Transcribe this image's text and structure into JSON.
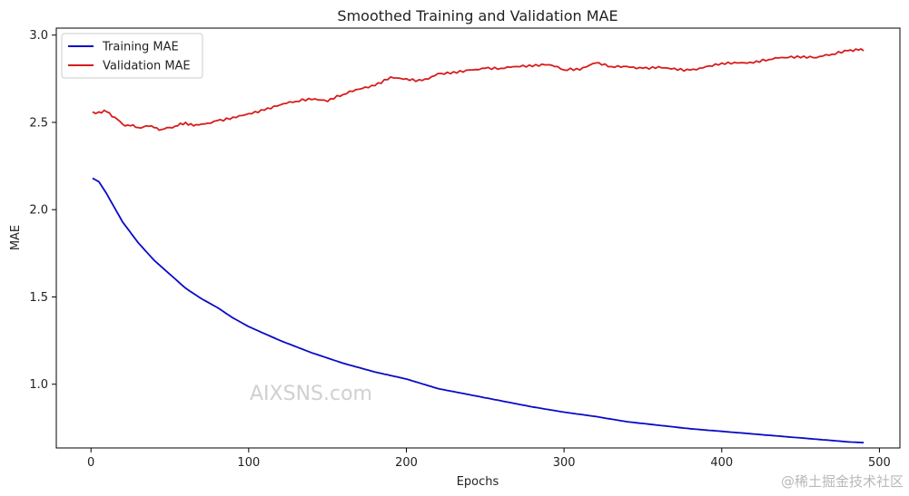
{
  "chart_data": {
    "type": "line",
    "title": "Smoothed Training and Validation MAE",
    "xlabel": "Epochs",
    "ylabel": "MAE",
    "xlim": [
      -22,
      513
    ],
    "ylim": [
      0.635,
      3.04
    ],
    "xticks": [
      0,
      100,
      200,
      300,
      400,
      500
    ],
    "yticks": [
      1.0,
      1.5,
      2.0,
      2.5,
      3.0
    ],
    "ytick_labels": [
      "1.0",
      "1.5",
      "2.0",
      "2.5",
      "3.0"
    ],
    "legend_position": "top-left",
    "grid": false,
    "series": [
      {
        "name": "Training MAE",
        "color": "#0a0ac8",
        "x": [
          1,
          5,
          10,
          20,
          30,
          40,
          50,
          60,
          70,
          80,
          90,
          100,
          120,
          140,
          160,
          180,
          200,
          220,
          240,
          260,
          280,
          300,
          320,
          340,
          360,
          380,
          400,
          420,
          440,
          460,
          480,
          490
        ],
        "y": [
          2.18,
          2.16,
          2.09,
          1.93,
          1.81,
          1.71,
          1.63,
          1.55,
          1.49,
          1.44,
          1.38,
          1.33,
          1.25,
          1.18,
          1.12,
          1.07,
          1.03,
          0.975,
          0.94,
          0.905,
          0.87,
          0.84,
          0.815,
          0.785,
          0.765,
          0.745,
          0.73,
          0.715,
          0.7,
          0.685,
          0.67,
          0.665
        ]
      },
      {
        "name": "Validation MAE",
        "color": "#d81c1c",
        "x": [
          1,
          5,
          10,
          15,
          20,
          25,
          30,
          35,
          40,
          45,
          50,
          55,
          60,
          65,
          70,
          80,
          90,
          100,
          110,
          120,
          130,
          140,
          150,
          160,
          170,
          180,
          190,
          200,
          210,
          220,
          230,
          240,
          250,
          260,
          270,
          280,
          290,
          300,
          310,
          320,
          330,
          340,
          350,
          360,
          370,
          380,
          390,
          400,
          410,
          420,
          430,
          440,
          450,
          460,
          470,
          480,
          485,
          490
        ],
        "y": [
          2.56,
          2.56,
          2.56,
          2.53,
          2.49,
          2.48,
          2.47,
          2.48,
          2.47,
          2.46,
          2.47,
          2.48,
          2.5,
          2.48,
          2.49,
          2.51,
          2.53,
          2.55,
          2.57,
          2.6,
          2.62,
          2.63,
          2.62,
          2.66,
          2.69,
          2.71,
          2.76,
          2.75,
          2.74,
          2.78,
          2.79,
          2.8,
          2.81,
          2.81,
          2.82,
          2.82,
          2.83,
          2.8,
          2.8,
          2.84,
          2.82,
          2.82,
          2.81,
          2.82,
          2.81,
          2.8,
          2.82,
          2.84,
          2.84,
          2.84,
          2.86,
          2.87,
          2.87,
          2.87,
          2.89,
          2.91,
          2.92,
          2.91
        ]
      }
    ],
    "annotations": [
      "AIXSNS.com",
      "@稀土掘金技术社区"
    ]
  }
}
